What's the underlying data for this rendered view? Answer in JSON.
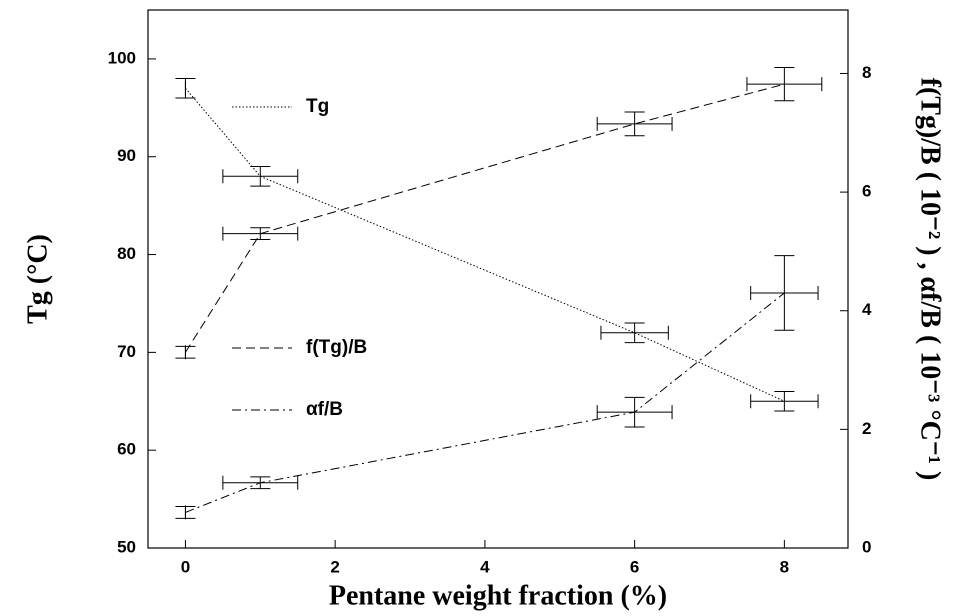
{
  "chart_data": {
    "type": "errorbar-line",
    "xlabel": "Pentane weight fraction (%)",
    "ylabel": "Tg (°C)",
    "y2label": "f(Tg)/B ( 10⁻² ) , αf/B ( 10⁻³ °C⁻¹ )",
    "x": [
      0,
      1,
      6,
      8
    ],
    "xlim": [
      -0.5,
      8.85
    ],
    "xticks": [
      0,
      2,
      4,
      6,
      8
    ],
    "ylim": [
      50,
      105
    ],
    "yticks": [
      50,
      60,
      70,
      80,
      90,
      100
    ],
    "y2lim": [
      0,
      9.07
    ],
    "y2ticks": [
      0,
      2,
      4,
      6,
      8
    ],
    "series": [
      {
        "name": "Tg",
        "color": "#000000",
        "linestyle": "dotted",
        "axis": "y",
        "values": [
          97,
          88,
          72,
          65
        ],
        "yerr": [
          1,
          1,
          1,
          1
        ],
        "xerr": [
          0,
          0.5,
          0.45,
          0.45
        ]
      },
      {
        "name": "f(Tg)/B",
        "color": "#000000",
        "linestyle": "dashed",
        "axis": "y2",
        "values": [
          3.3,
          5.3,
          7.15,
          7.82
        ],
        "yerr": [
          0.1,
          0.1,
          0.2,
          0.28
        ],
        "xerr": [
          0,
          0.5,
          0.5,
          0.5
        ]
      },
      {
        "name": "αf/B",
        "color": "#000000",
        "linestyle": "dashdot",
        "axis": "y2",
        "values": [
          0.6,
          1.1,
          2.29,
          4.3
        ],
        "yerr": [
          0.1,
          0.1,
          0.25,
          0.63
        ],
        "xerr": [
          0,
          0.5,
          0.5,
          0.45
        ]
      }
    ]
  }
}
